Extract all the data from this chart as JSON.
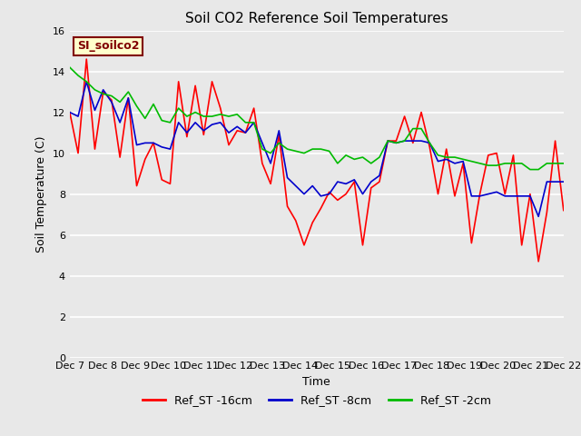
{
  "title": "Soil CO2 Reference Soil Temperatures",
  "xlabel": "Time",
  "ylabel": "Soil Temperature (C)",
  "ylim": [
    0,
    16
  ],
  "yticks": [
    0,
    2,
    4,
    6,
    8,
    10,
    12,
    14,
    16
  ],
  "x_labels": [
    "Dec 7",
    "Dec 8",
    "Dec 9",
    "Dec 10",
    "Dec 11",
    "Dec 12",
    "Dec 13",
    "Dec 14",
    "Dec 15",
    "Dec 16",
    "Dec 17",
    "Dec 18",
    "Dec 19",
    "Dec 20",
    "Dec 21",
    "Dec 22"
  ],
  "annotation_text": "SI_soilco2",
  "annotation_bg": "#ffffcc",
  "annotation_color": "#800000",
  "plot_bg": "#e8e8e8",
  "grid_color": "#ffffff",
  "series": {
    "Ref_ST -16cm": {
      "color": "#ff0000",
      "lw": 1.2
    },
    "Ref_ST -8cm": {
      "color": "#0000cc",
      "lw": 1.2
    },
    "Ref_ST -2cm": {
      "color": "#00bb00",
      "lw": 1.2
    }
  },
  "red_y": [
    12.0,
    10.0,
    14.6,
    10.2,
    13.0,
    12.6,
    9.8,
    12.7,
    8.4,
    9.7,
    10.5,
    8.7,
    8.5,
    13.5,
    10.8,
    13.3,
    10.9,
    13.5,
    12.2,
    10.4,
    11.1,
    11.0,
    12.2,
    9.5,
    8.5,
    10.9,
    7.4,
    6.7,
    5.5,
    6.6,
    7.3,
    8.1,
    7.7,
    8.0,
    8.6,
    5.5,
    8.3,
    8.6,
    10.6,
    10.6,
    11.8,
    10.5,
    12.0,
    10.3,
    8.0,
    10.2,
    7.9,
    9.5,
    5.6,
    8.0,
    9.9,
    10.0,
    8.0,
    9.9,
    5.5,
    8.0,
    4.7,
    7.1,
    10.6,
    7.2
  ],
  "blue_y": [
    12.0,
    11.8,
    13.5,
    12.1,
    13.1,
    12.5,
    11.5,
    12.7,
    10.4,
    10.5,
    10.5,
    10.3,
    10.2,
    11.5,
    11.0,
    11.5,
    11.1,
    11.4,
    11.5,
    11.0,
    11.3,
    11.0,
    11.5,
    10.5,
    9.5,
    11.1,
    8.8,
    8.4,
    8.0,
    8.4,
    7.9,
    8.0,
    8.6,
    8.5,
    8.7,
    8.0,
    8.6,
    8.9,
    10.6,
    10.5,
    10.6,
    10.6,
    10.6,
    10.5,
    9.6,
    9.7,
    9.5,
    9.6,
    7.9,
    7.9,
    8.0,
    8.1,
    7.9,
    7.9,
    7.9,
    7.9,
    6.9,
    8.6,
    8.6,
    8.6
  ],
  "green_y": [
    14.2,
    13.8,
    13.5,
    13.1,
    12.9,
    12.8,
    12.5,
    13.0,
    12.3,
    11.7,
    12.4,
    11.6,
    11.5,
    12.2,
    11.8,
    12.0,
    11.8,
    11.8,
    11.9,
    11.8,
    11.9,
    11.5,
    11.5,
    10.2,
    10.0,
    10.5,
    10.2,
    10.1,
    10.0,
    10.2,
    10.2,
    10.1,
    9.5,
    9.9,
    9.7,
    9.8,
    9.5,
    9.8,
    10.6,
    10.5,
    10.6,
    11.2,
    11.2,
    10.5,
    9.9,
    9.8,
    9.8,
    9.7,
    9.6,
    9.5,
    9.4,
    9.4,
    9.5,
    9.5,
    9.5,
    9.2,
    9.2,
    9.5,
    9.5,
    9.5
  ]
}
